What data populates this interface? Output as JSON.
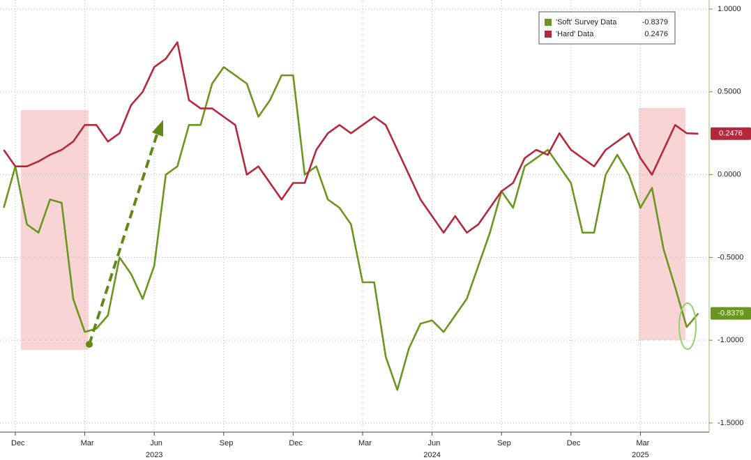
{
  "chart_data": {
    "type": "line",
    "categories": [
      null,
      "Dec",
      null,
      null,
      null,
      null,
      null,
      "Mar",
      null,
      null,
      null,
      null,
      null,
      "Jun",
      null,
      null,
      null,
      null,
      null,
      "Sep",
      null,
      null,
      null,
      null,
      null,
      "Dec",
      null,
      null,
      null,
      null,
      null,
      "Mar",
      null,
      null,
      null,
      null,
      null,
      "Jun",
      null,
      null,
      null,
      null,
      null,
      "Sep",
      null,
      null,
      null,
      null,
      null,
      "Dec",
      null,
      null,
      null,
      null,
      null,
      "Mar",
      null,
      null,
      null,
      null,
      null
    ],
    "year_categories": [
      null,
      null,
      null,
      null,
      null,
      null,
      null,
      null,
      null,
      null,
      null,
      null,
      null,
      "2023",
      null,
      null,
      null,
      null,
      null,
      null,
      null,
      null,
      null,
      null,
      null,
      null,
      null,
      null,
      null,
      null,
      null,
      null,
      null,
      null,
      null,
      null,
      null,
      "2024",
      null,
      null,
      null,
      null,
      null,
      null,
      null,
      null,
      null,
      null,
      null,
      null,
      null,
      null,
      null,
      null,
      null,
      "2025",
      null,
      null,
      null,
      null,
      null
    ],
    "series": [
      {
        "name": "'Soft' Survey Data",
        "color": "#6a961f",
        "values": [
          -0.2,
          0.05,
          -0.3,
          -0.35,
          -0.15,
          -0.17,
          -0.75,
          -0.95,
          -0.93,
          -0.85,
          -0.5,
          -0.6,
          -0.75,
          -0.55,
          0.0,
          0.05,
          0.3,
          0.3,
          0.55,
          0.65,
          0.6,
          0.55,
          0.35,
          0.45,
          0.6,
          0.6,
          0.0,
          0.05,
          -0.15,
          -0.2,
          -0.3,
          -0.65,
          -0.65,
          -1.1,
          -1.3,
          -1.05,
          -0.9,
          -0.88,
          -0.95,
          -0.85,
          -0.75,
          -0.55,
          -0.35,
          -0.1,
          -0.2,
          0.05,
          0.1,
          0.15,
          0.05,
          -0.05,
          -0.35,
          -0.35,
          0.0,
          0.12,
          0.0,
          -0.2,
          -0.08,
          -0.45,
          -0.68,
          -0.92,
          -0.8379
        ]
      },
      {
        "name": "'Hard' Data",
        "color": "#b5283c",
        "values": [
          0.15,
          0.05,
          0.05,
          0.08,
          0.12,
          0.15,
          0.2,
          0.3,
          0.3,
          0.2,
          0.25,
          0.42,
          0.5,
          0.65,
          0.7,
          0.8,
          0.45,
          0.4,
          0.4,
          0.35,
          0.3,
          0.0,
          0.05,
          -0.05,
          -0.15,
          -0.05,
          -0.05,
          0.15,
          0.25,
          0.3,
          0.25,
          0.3,
          0.35,
          0.3,
          0.15,
          0.0,
          -0.15,
          -0.25,
          -0.35,
          -0.25,
          -0.35,
          -0.3,
          -0.2,
          -0.1,
          -0.05,
          0.1,
          0.15,
          0.12,
          0.25,
          0.15,
          0.1,
          0.05,
          0.15,
          0.2,
          0.25,
          0.1,
          0.0,
          0.15,
          0.3,
          0.25,
          0.2476
        ]
      }
    ],
    "ylim": [
      -1.555,
      1.055
    ],
    "yticks": [
      {
        "value": 1,
        "label": "1.0000"
      },
      {
        "value": 0.5,
        "label": "0.5000"
      },
      {
        "value": 0,
        "label": "0.0000"
      },
      {
        "value": -0.5,
        "label": "-0.5000"
      },
      {
        "value": -1,
        "label": "-1.0000"
      },
      {
        "value": -1.5,
        "label": "-1.5000"
      }
    ],
    "grid": true
  }
}
